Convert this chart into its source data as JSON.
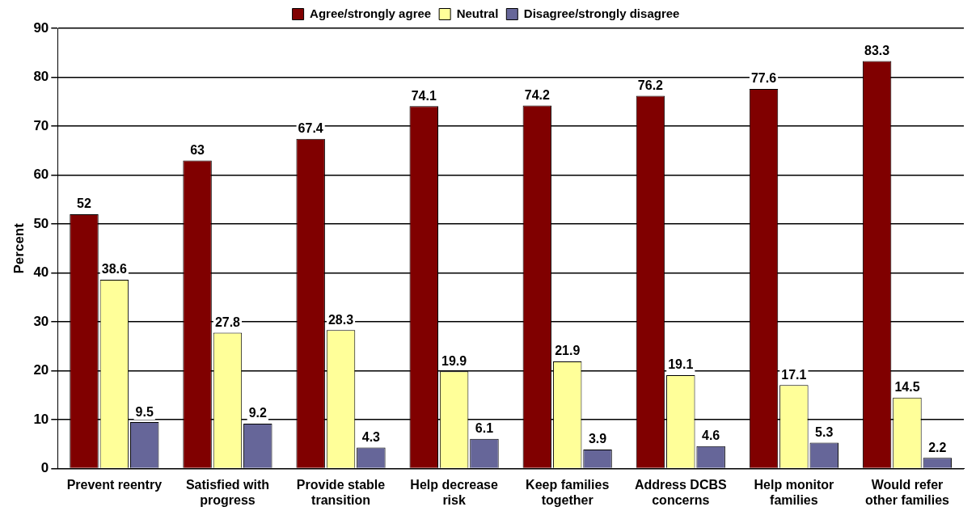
{
  "chart_data": {
    "type": "bar",
    "ylabel": "Percent",
    "categories": [
      "Prevent reentry",
      "Satisfied with progress",
      "Provide stable transition",
      "Help decrease risk",
      "Keep families together",
      "Address DCBS concerns",
      "Help monitor families",
      "Would refer other families"
    ],
    "series": [
      {
        "name": "Agree/strongly agree",
        "color": "#800000",
        "values": [
          52,
          63,
          67.4,
          74.1,
          74.2,
          76.2,
          77.6,
          83.3
        ]
      },
      {
        "name": "Neutral",
        "color": "#ffff99",
        "values": [
          38.6,
          27.8,
          28.3,
          19.9,
          21.9,
          19.1,
          17.1,
          14.5
        ]
      },
      {
        "name": "Disagree/strongly disagree",
        "color": "#666699",
        "values": [
          9.5,
          9.2,
          4.3,
          6.1,
          3.9,
          4.6,
          5.3,
          2.2
        ]
      }
    ],
    "ylim": [
      0,
      90
    ],
    "yticks": [
      0,
      10,
      20,
      30,
      40,
      50,
      60,
      70,
      80,
      90
    ],
    "grid": "y",
    "legend": "top",
    "data_labels": true
  }
}
